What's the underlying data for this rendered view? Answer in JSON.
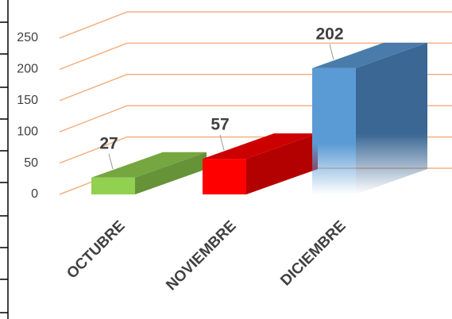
{
  "chart_data": {
    "type": "bar3d",
    "categories": [
      "OCTUBRE",
      "NOVIEMBRE",
      "DICIEMBRE"
    ],
    "values": [
      27,
      57,
      202
    ],
    "colors": [
      "#92d050",
      "#ff0000",
      "#5b9bd5"
    ],
    "ylim": [
      0,
      250
    ],
    "yticks": [
      0,
      50,
      100,
      150,
      200,
      250
    ],
    "grid": true
  }
}
